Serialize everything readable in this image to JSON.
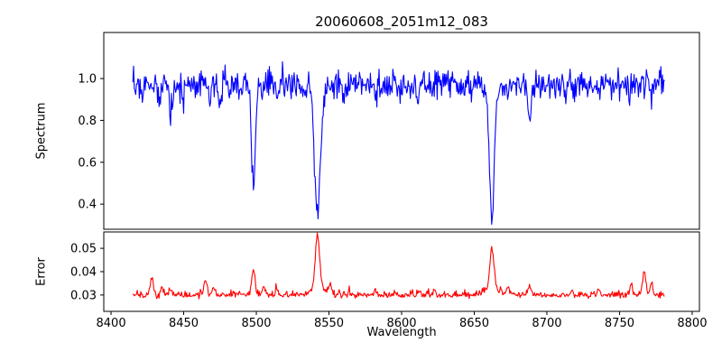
{
  "chart_data": {
    "type": "line",
    "title": "20060608_2051m12_083",
    "xlabel": "Wavelength",
    "grid": false,
    "legend": false,
    "xlim": [
      8395,
      8805
    ],
    "x_range": [
      8415,
      8781
    ],
    "x_step": 0.5,
    "x_ticks": [
      8400,
      8450,
      8500,
      8550,
      8600,
      8650,
      8700,
      8750,
      8800
    ],
    "panels": [
      {
        "name": "spectrum",
        "ylabel": "Spectrum",
        "color": "#0000ff",
        "ylim": [
          0.28,
          1.22
        ],
        "y_ticks": [
          {
            "value": 0.4,
            "label": "0.4"
          },
          {
            "value": 0.6,
            "label": "0.6"
          },
          {
            "value": 0.8,
            "label": "0.8"
          },
          {
            "value": 1.0,
            "label": "1.0"
          }
        ],
        "baseline": 0.975,
        "noise_std": 0.034,
        "absorption_lines": [
          {
            "center": 8498.0,
            "depth": 0.5,
            "sigma": 1.3
          },
          {
            "center": 8542.1,
            "depth": 0.58,
            "sigma": 1.9
          },
          {
            "center": 8542.1,
            "depth": 0.06,
            "sigma": 5.0
          },
          {
            "center": 8662.1,
            "depth": 0.6,
            "sigma": 1.7
          },
          {
            "center": 8662.1,
            "depth": 0.04,
            "sigma": 5.0
          },
          {
            "center": 8421.0,
            "depth": 0.06,
            "sigma": 0.8
          },
          {
            "center": 8433.0,
            "depth": 0.1,
            "sigma": 1.0
          },
          {
            "center": 8441.0,
            "depth": 0.12,
            "sigma": 1.0
          },
          {
            "center": 8450.0,
            "depth": 0.06,
            "sigma": 0.8
          },
          {
            "center": 8468.0,
            "depth": 0.08,
            "sigma": 0.9
          },
          {
            "center": 8475.0,
            "depth": 0.1,
            "sigma": 0.9
          },
          {
            "center": 8504.0,
            "depth": 0.08,
            "sigma": 0.8
          },
          {
            "center": 8514.0,
            "depth": 0.09,
            "sigma": 0.9
          },
          {
            "center": 8527.0,
            "depth": 0.06,
            "sigma": 0.8
          },
          {
            "center": 8560.0,
            "depth": 0.06,
            "sigma": 0.8
          },
          {
            "center": 8582.0,
            "depth": 0.07,
            "sigma": 0.9
          },
          {
            "center": 8598.0,
            "depth": 0.05,
            "sigma": 0.8
          },
          {
            "center": 8611.0,
            "depth": 0.06,
            "sigma": 0.8
          },
          {
            "center": 8621.0,
            "depth": 0.05,
            "sigma": 0.8
          },
          {
            "center": 8648.0,
            "depth": 0.07,
            "sigma": 0.8
          },
          {
            "center": 8673.0,
            "depth": 0.08,
            "sigma": 0.8
          },
          {
            "center": 8688.0,
            "depth": 0.17,
            "sigma": 1.0
          },
          {
            "center": 8713.0,
            "depth": 0.06,
            "sigma": 0.8
          },
          {
            "center": 8736.0,
            "depth": 0.07,
            "sigma": 0.8
          },
          {
            "center": 8757.0,
            "depth": 0.06,
            "sigma": 0.8
          },
          {
            "center": 8772.0,
            "depth": 0.06,
            "sigma": 0.8
          }
        ]
      },
      {
        "name": "error",
        "ylabel": "Error",
        "color": "#ff0000",
        "ylim": [
          0.023,
          0.057
        ],
        "y_ticks": [
          {
            "value": 0.03,
            "label": "0.03"
          },
          {
            "value": 0.04,
            "label": "0.04"
          },
          {
            "value": 0.05,
            "label": "0.05"
          }
        ],
        "baseline": 0.0292,
        "noise_abs": 0.0011,
        "noise_sym": 0.0004,
        "spikes": [
          {
            "center": 8428.0,
            "amp": 0.0075,
            "sigma": 1.2
          },
          {
            "center": 8435.0,
            "amp": 0.0038,
            "sigma": 1.0
          },
          {
            "center": 8441.0,
            "amp": 0.003,
            "sigma": 1.0
          },
          {
            "center": 8465.0,
            "amp": 0.006,
            "sigma": 1.1
          },
          {
            "center": 8471.0,
            "amp": 0.0035,
            "sigma": 0.9
          },
          {
            "center": 8498.0,
            "amp": 0.0105,
            "sigma": 1.2
          },
          {
            "center": 8505.0,
            "amp": 0.0038,
            "sigma": 1.0
          },
          {
            "center": 8514.0,
            "amp": 0.0028,
            "sigma": 0.9
          },
          {
            "center": 8542.1,
            "amp": 0.0225,
            "sigma": 1.4
          },
          {
            "center": 8542.1,
            "amp": 0.0035,
            "sigma": 5.0
          },
          {
            "center": 8551.0,
            "amp": 0.0038,
            "sigma": 1.0
          },
          {
            "center": 8582.0,
            "amp": 0.002,
            "sigma": 0.9
          },
          {
            "center": 8611.0,
            "amp": 0.0015,
            "sigma": 0.9
          },
          {
            "center": 8662.1,
            "amp": 0.0165,
            "sigma": 1.4
          },
          {
            "center": 8662.1,
            "amp": 0.0028,
            "sigma": 5.0
          },
          {
            "center": 8673.0,
            "amp": 0.0028,
            "sigma": 1.0
          },
          {
            "center": 8688.0,
            "amp": 0.004,
            "sigma": 1.1
          },
          {
            "center": 8717.0,
            "amp": 0.0018,
            "sigma": 0.9
          },
          {
            "center": 8736.0,
            "amp": 0.002,
            "sigma": 0.9
          },
          {
            "center": 8758.0,
            "amp": 0.004,
            "sigma": 1.0
          },
          {
            "center": 8767.0,
            "amp": 0.009,
            "sigma": 1.2
          },
          {
            "center": 8772.0,
            "amp": 0.005,
            "sigma": 1.0
          }
        ]
      }
    ]
  }
}
